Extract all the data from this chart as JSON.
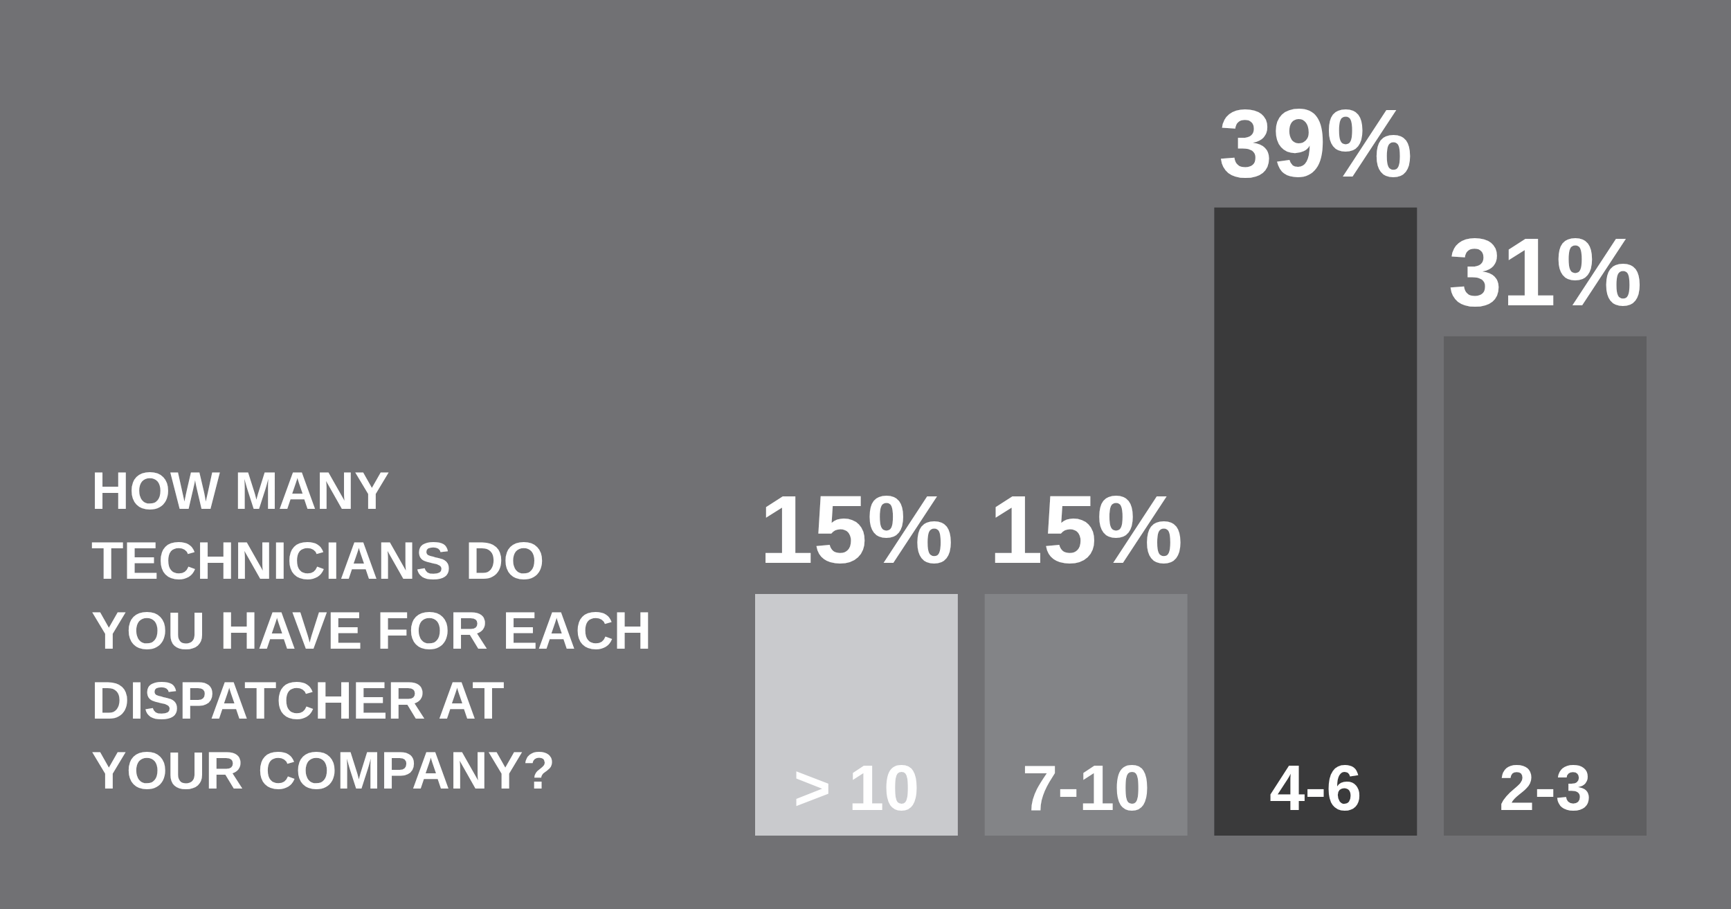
{
  "chart_data": {
    "type": "bar",
    "title": "HOW MANY TECHNICIANS DO YOU HAVE FOR EACH DISPATCHER AT YOUR COMPANY?",
    "categories": [
      "> 10",
      "7-10",
      "4-6",
      "2-3"
    ],
    "values": [
      15,
      15,
      39,
      31
    ],
    "value_labels": [
      "15%",
      "15%",
      "39%",
      "31%"
    ],
    "colors": [
      "#c9cacd",
      "#838487",
      "#3a3a3b",
      "#5f5f61"
    ]
  }
}
